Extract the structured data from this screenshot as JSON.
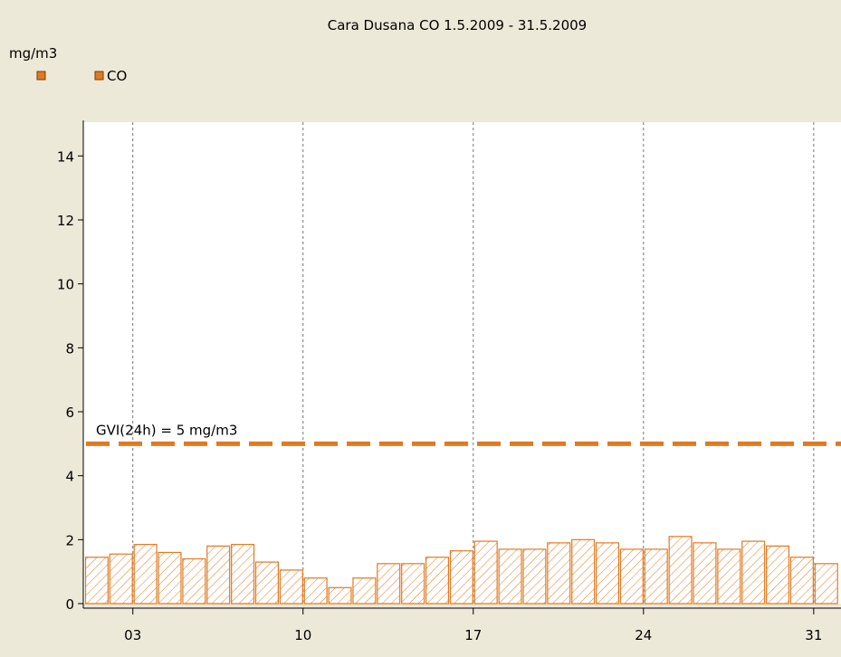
{
  "chart_data": {
    "type": "bar",
    "title": "Cara Dusana CO    1.5.2009 - 31.5.2009",
    "y_label": "mg/m3",
    "x": [
      1,
      2,
      3,
      4,
      5,
      6,
      7,
      8,
      9,
      10,
      11,
      12,
      13,
      14,
      15,
      16,
      17,
      18,
      19,
      20,
      21,
      22,
      23,
      24,
      25,
      26,
      27,
      28,
      29,
      30,
      31
    ],
    "series": [
      {
        "name": "CO",
        "color": "#e07a22",
        "values": [
          1.45,
          1.55,
          1.85,
          1.6,
          1.4,
          1.8,
          1.85,
          1.3,
          1.05,
          0.8,
          0.5,
          0.8,
          1.25,
          1.25,
          1.45,
          1.65,
          1.95,
          1.7,
          1.7,
          1.9,
          2.0,
          1.9,
          1.7,
          1.7,
          2.1,
          1.9,
          1.7,
          1.95,
          1.8,
          1.45,
          1.25
        ]
      }
    ],
    "xlim": [
      1,
      32
    ],
    "xticks": [
      {
        "value": 3,
        "label": "03"
      },
      10,
      17,
      24,
      31
    ],
    "ylim": [
      0,
      15
    ],
    "yticks": [
      0,
      2,
      4,
      6,
      8,
      10,
      12,
      14
    ],
    "grid": true,
    "threshold": {
      "value": 5,
      "label": "GVI(24h) = 5 mg/m3"
    }
  }
}
